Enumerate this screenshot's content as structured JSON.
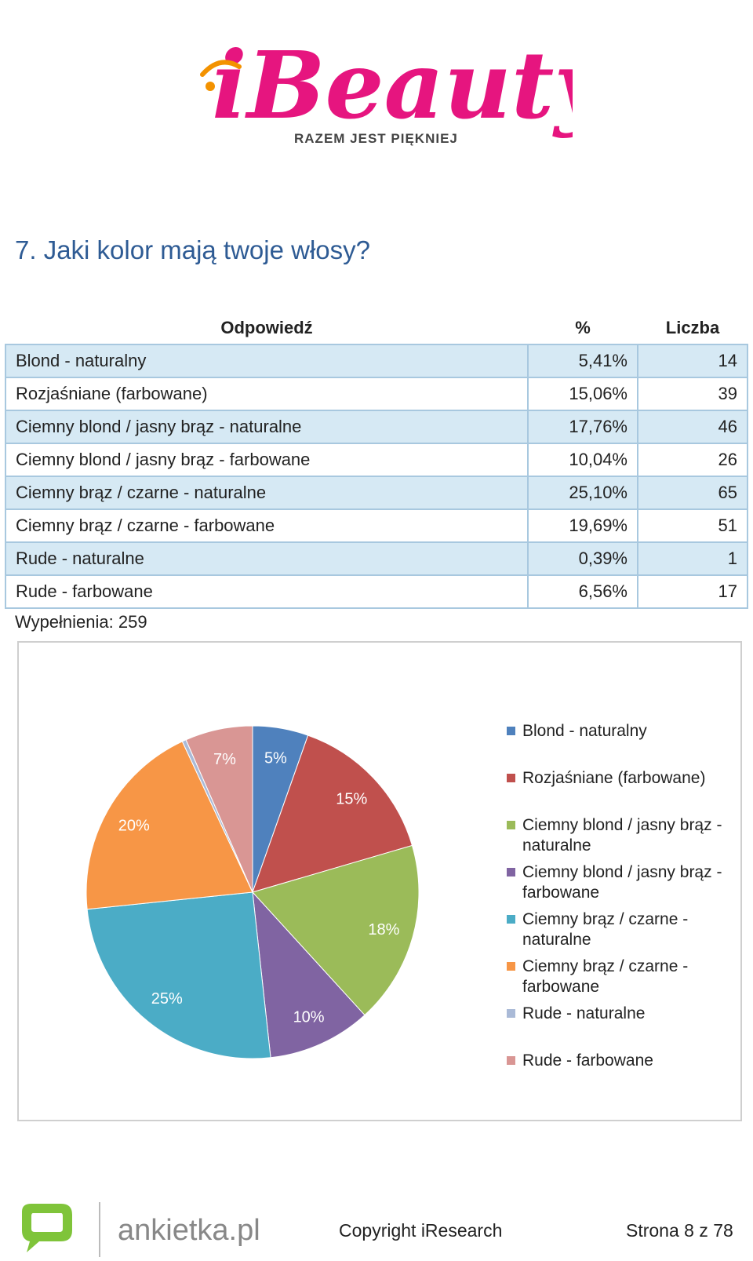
{
  "header": {
    "logo_text": "iBeauty.pl",
    "logo_tagline": "RAZEM JEST PIĘKNIEJ",
    "logo_accent": "#e6157f"
  },
  "question": {
    "title": "7. Jaki kolor mają twoje włosy?"
  },
  "table": {
    "headers": {
      "answer": "Odpowiedź",
      "percent": "%",
      "count": "Liczba"
    },
    "rows": [
      {
        "label": "Blond - naturalny",
        "percent": "5,41%",
        "count": "14"
      },
      {
        "label": "Rozjaśniane (farbowane)",
        "percent": "15,06%",
        "count": "39"
      },
      {
        "label": "Ciemny blond / jasny brąz - naturalne",
        "percent": "17,76%",
        "count": "46"
      },
      {
        "label": "Ciemny blond / jasny brąz - farbowane",
        "percent": "10,04%",
        "count": "26"
      },
      {
        "label": "Ciemny brąz / czarne - naturalne",
        "percent": "25,10%",
        "count": "65"
      },
      {
        "label": "Ciemny brąz / czarne - farbowane",
        "percent": "19,69%",
        "count": "51"
      },
      {
        "label": "Rude - naturalne",
        "percent": "0,39%",
        "count": "1"
      },
      {
        "label": "Rude - farbowane",
        "percent": "6,56%",
        "count": "17"
      }
    ],
    "filled": "Wypełnienia: 259"
  },
  "chart_data": {
    "type": "pie",
    "categories": [
      "Blond - naturalny",
      "Rozjaśniane (farbowane)",
      "Ciemny blond / jasny brąz - naturalne",
      "Ciemny blond / jasny brąz - farbowane",
      "Ciemny brąz / czarne - naturalne",
      "Ciemny brąz / czarne - farbowane",
      "Rude - naturalne",
      "Rude - farbowane"
    ],
    "values": [
      5.41,
      15.06,
      17.76,
      10.04,
      25.1,
      19.69,
      0.39,
      6.56
    ],
    "data_labels": [
      "5%",
      "15%",
      "18%",
      "10%",
      "25%",
      "20%",
      "",
      "7%"
    ],
    "legend_lines": [
      [
        "Blond - naturalny"
      ],
      [
        "Rozjaśniane (farbowane)"
      ],
      [
        "Ciemny blond / jasny brąz -",
        "naturalne"
      ],
      [
        "Ciemny blond / jasny brąz -",
        "farbowane"
      ],
      [
        "Ciemny brąz / czarne -",
        "naturalne"
      ],
      [
        "Ciemny brąz / czarne -",
        "farbowane"
      ],
      [
        "Rude - naturalne"
      ],
      [
        "Rude - farbowane"
      ]
    ],
    "colors": [
      "#4f81bd",
      "#c0504d",
      "#9bbb59",
      "#8064a2",
      "#4bacc6",
      "#f79646",
      "#aabad7",
      "#d99694"
    ],
    "legend_position": "right"
  },
  "footer": {
    "logo_text": "ankietka.pl",
    "logo_accent": "#7fc43a",
    "copyright": "Copyright iResearch",
    "page": "Strona 8 z 78"
  }
}
